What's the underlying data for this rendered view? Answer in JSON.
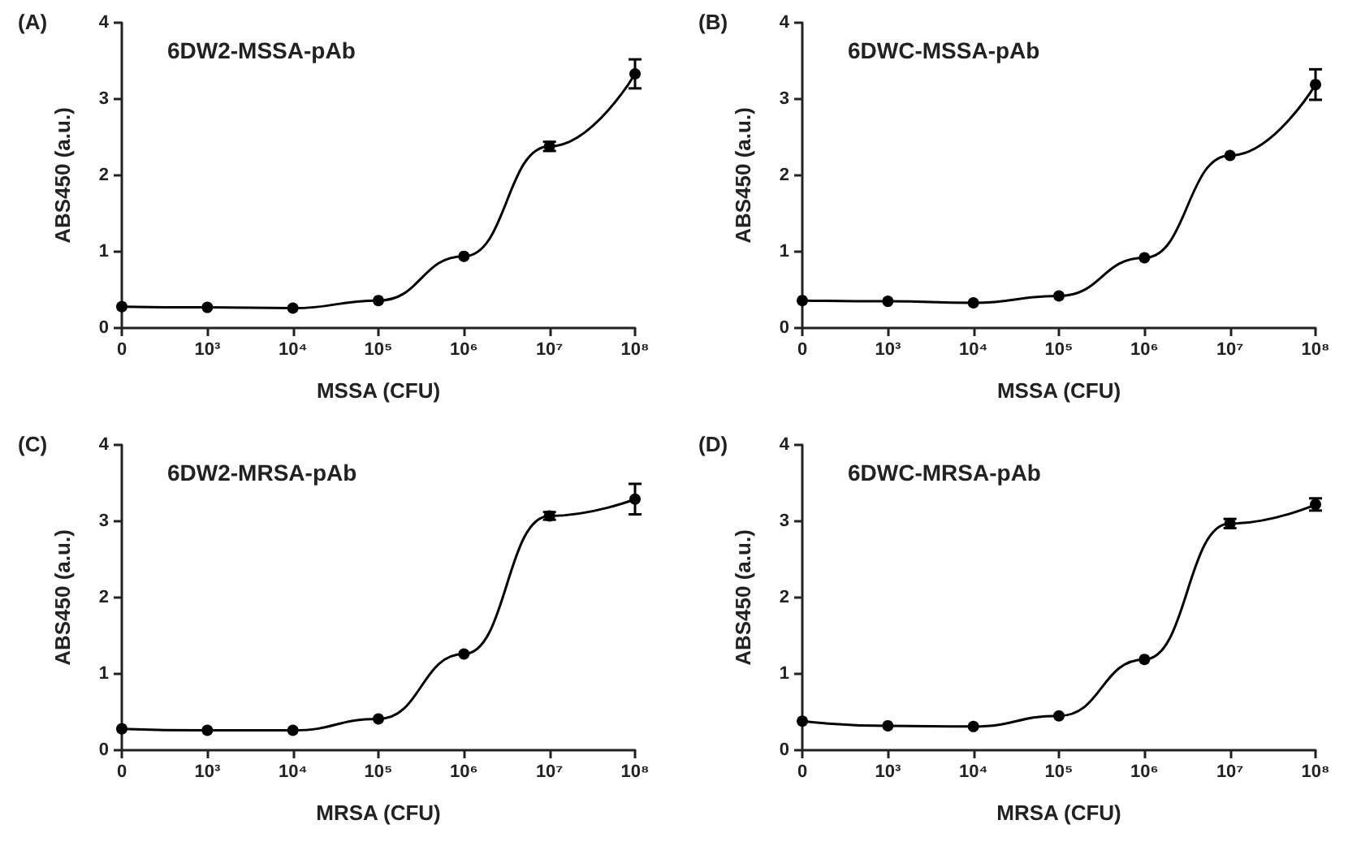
{
  "chart_data": [
    {
      "type": "line",
      "title": "(A)",
      "annotations": [
        "6DW2-MSSA-pAb"
      ],
      "xlabel": "MSSA (CFU)",
      "ylabel": "ABS450 (a.u.)",
      "categories": [
        "0",
        "10³",
        "10⁴",
        "10⁵",
        "10⁶",
        "10⁷",
        "10⁸"
      ],
      "values": [
        0.28,
        0.27,
        0.26,
        0.36,
        0.94,
        2.38,
        3.33
      ],
      "errors": [
        null,
        null,
        null,
        null,
        null,
        0.06,
        0.19
      ],
      "color": "#000000",
      "marker": "circle",
      "ylim": [
        0,
        4
      ],
      "yticks": [
        0,
        1,
        2,
        3,
        4
      ]
    },
    {
      "type": "line",
      "title": "(B)",
      "annotations": [
        "6DWC-MSSA-pAb"
      ],
      "xlabel": "MSSA (CFU)",
      "ylabel": "ABS450 (a.u.)",
      "categories": [
        "0",
        "10³",
        "10⁴",
        "10⁵",
        "10⁶",
        "10⁷",
        "10⁸"
      ],
      "values": [
        0.36,
        0.35,
        0.33,
        0.42,
        0.92,
        2.26,
        3.19
      ],
      "errors": [
        null,
        null,
        null,
        null,
        null,
        null,
        0.2
      ],
      "color": "#000000",
      "marker": "circle",
      "ylim": [
        0,
        4
      ],
      "yticks": [
        0,
        1,
        2,
        3,
        4
      ]
    },
    {
      "type": "line",
      "title": "(C)",
      "annotations": [
        "6DW2-MRSA-pAb"
      ],
      "xlabel": "MRSA (CFU)",
      "ylabel": "ABS450 (a.u.)",
      "categories": [
        "0",
        "10³",
        "10⁴",
        "10⁵",
        "10⁶",
        "10⁷",
        "10⁸"
      ],
      "values": [
        0.28,
        0.26,
        0.26,
        0.41,
        1.26,
        3.07,
        3.29
      ],
      "errors": [
        null,
        null,
        null,
        null,
        null,
        0.05,
        0.2
      ],
      "color": "#000000",
      "marker": "circle",
      "ylim": [
        0,
        4
      ],
      "yticks": [
        0,
        1,
        2,
        3,
        4
      ]
    },
    {
      "type": "line",
      "title": "(D)",
      "annotations": [
        "6DWC-MRSA-pAb"
      ],
      "xlabel": "MRSA (CFU)",
      "ylabel": "ABS450 (a.u.)",
      "categories": [
        "0",
        "10³",
        "10⁴",
        "10⁵",
        "10⁶",
        "10⁷",
        "10⁸"
      ],
      "values": [
        0.38,
        0.32,
        0.31,
        0.45,
        1.19,
        2.97,
        3.22
      ],
      "errors": [
        null,
        null,
        null,
        null,
        null,
        0.06,
        0.08
      ],
      "color": "#000000",
      "marker": "circle",
      "ylim": [
        0,
        4
      ],
      "yticks": [
        0,
        1,
        2,
        3,
        4
      ]
    }
  ]
}
